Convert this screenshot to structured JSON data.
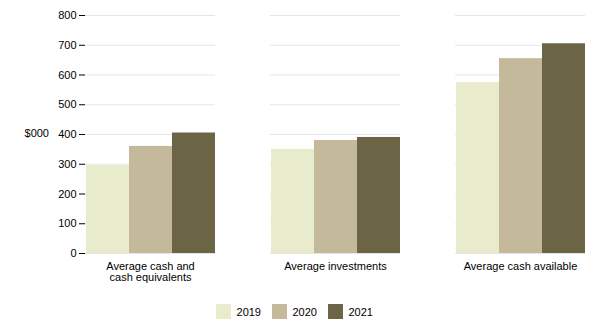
{
  "chart_data": {
    "type": "bar",
    "categories": [
      "Average cash and\ncash equivalents",
      "Average investments",
      "Average cash available"
    ],
    "series": [
      {
        "name": "2019",
        "color": "#e8eccc",
        "values": [
          295,
          350,
          575
        ]
      },
      {
        "name": "2020",
        "color": "#c4b99a",
        "values": [
          360,
          380,
          655
        ]
      },
      {
        "name": "2021",
        "color": "#6b6545",
        "values": [
          405,
          390,
          705
        ]
      }
    ],
    "ylabel": "$000",
    "ylim": [
      0,
      800
    ],
    "yticks": [
      0,
      100,
      200,
      300,
      400,
      500,
      600,
      700,
      800
    ],
    "grid": true,
    "legend": "bottom"
  }
}
